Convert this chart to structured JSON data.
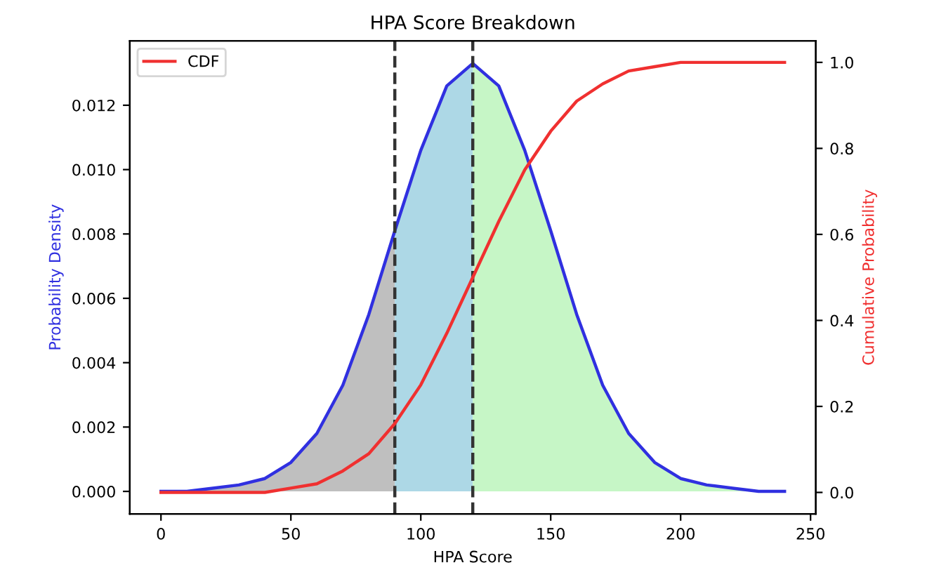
{
  "chart_data": {
    "type": "line",
    "title": "HPA Score Breakdown",
    "xlabel": "HPA Score",
    "ylabel": "Probability Density",
    "y2label": "Cumulative Probability",
    "xlim": [
      -12,
      252
    ],
    "xticks": [
      0,
      50,
      100,
      150,
      200,
      250
    ],
    "ylim": [
      -0.0007,
      0.014
    ],
    "yticks": [
      {
        "value": 0,
        "label": "0.000"
      },
      {
        "value": 0.002,
        "label": "0.002"
      },
      {
        "value": 0.004,
        "label": "0.004"
      },
      {
        "value": 0.006,
        "label": "0.006"
      },
      {
        "value": 0.008,
        "label": "0.008"
      },
      {
        "value": 0.01,
        "label": "0.010"
      },
      {
        "value": 0.012,
        "label": "0.012"
      }
    ],
    "y2lim": [
      -0.05,
      1.05
    ],
    "y2ticks": [
      {
        "value": 0,
        "label": "0.0"
      },
      {
        "value": 0.2,
        "label": "0.2"
      },
      {
        "value": 0.4,
        "label": "0.4"
      },
      {
        "value": 0.6,
        "label": "0.6"
      },
      {
        "value": 0.8,
        "label": "0.8"
      },
      {
        "value": 1,
        "label": "1.0"
      }
    ],
    "series": [
      {
        "type": "area",
        "color": "#bfbfbf",
        "x": [
          0,
          10,
          20,
          30,
          40,
          50,
          60,
          70,
          80,
          90
        ],
        "values": [
          0.0,
          0.0,
          0.0001,
          0.0002,
          0.0004,
          0.0009,
          0.0018,
          0.0033,
          0.0055,
          0.0081
        ]
      },
      {
        "type": "area",
        "color": "#add8e6",
        "x": [
          90,
          100,
          110,
          120
        ],
        "values": [
          0.0081,
          0.0106,
          0.0126,
          0.0133
        ]
      },
      {
        "type": "area",
        "color": "#c6f6c6",
        "x": [
          120,
          130,
          140,
          150,
          160,
          170,
          180,
          190,
          200,
          210,
          220,
          230,
          240
        ],
        "values": [
          0.0133,
          0.0126,
          0.0106,
          0.0081,
          0.0055,
          0.0033,
          0.0018,
          0.0009,
          0.0004,
          0.0002,
          0.0001,
          0.0,
          0.0
        ]
      },
      {
        "color": "#3030e0",
        "x": [
          0,
          10,
          20,
          30,
          40,
          50,
          60,
          70,
          80,
          90,
          100,
          110,
          120,
          130,
          140,
          150,
          160,
          170,
          180,
          190,
          200,
          210,
          220,
          230,
          240
        ],
        "values": [
          0.0,
          0.0,
          0.0001,
          0.0002,
          0.0004,
          0.0009,
          0.0018,
          0.0033,
          0.0055,
          0.0081,
          0.0106,
          0.0126,
          0.0133,
          0.0126,
          0.0106,
          0.0081,
          0.0055,
          0.0033,
          0.0018,
          0.0009,
          0.0004,
          0.0002,
          0.0001,
          0.0,
          0.0
        ]
      },
      {
        "type": "line",
        "name": "CDF",
        "axis": "y2",
        "color": "#f03030",
        "x": [
          0,
          10,
          20,
          30,
          40,
          50,
          60,
          70,
          80,
          90,
          100,
          110,
          120,
          130,
          140,
          150,
          160,
          170,
          180,
          190,
          200,
          210,
          220,
          230,
          240
        ],
        "values": [
          0.0,
          0.0,
          0.0,
          0.0,
          0.0,
          0.01,
          0.02,
          0.05,
          0.09,
          0.16,
          0.25,
          0.37,
          0.5,
          0.63,
          0.75,
          0.84,
          0.91,
          0.95,
          0.98,
          0.99,
          1.0,
          1.0,
          1.0,
          1.0,
          1.0
        ]
      }
    ],
    "ref_lines": [
      {
        "axis": "x",
        "value": 90,
        "color": "#333333",
        "line_style": "dashed"
      },
      {
        "axis": "x",
        "value": 120,
        "color": "#333333",
        "line_style": "dashed"
      }
    ],
    "legend": "top left",
    "grid": false
  }
}
